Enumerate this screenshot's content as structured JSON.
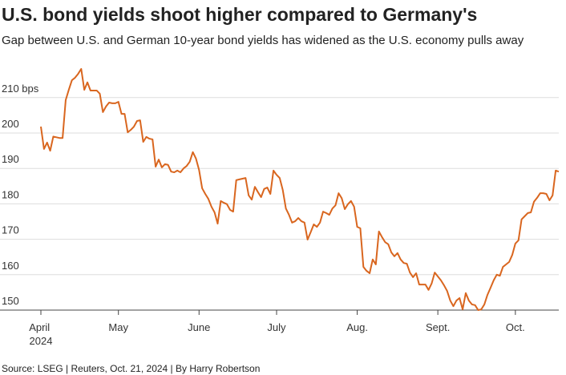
{
  "chart_data": {
    "type": "line",
    "title": "U.S. bond yields shoot higher compared to Germany's",
    "subtitle": "Gap between U.S. and German 10-year bond yields has widened as the U.S. economy pulls away",
    "source": "Source: LSEG | Reuters, Oct. 21, 2024 | By Harry Robertson",
    "categories": [
      "April 2024",
      null,
      null,
      null,
      null,
      null,
      null,
      null,
      null,
      null,
      null,
      null,
      null,
      null,
      null,
      null,
      null,
      null,
      null,
      null,
      null,
      null,
      null,
      null,
      null,
      "May",
      null,
      null,
      null,
      null,
      null,
      null,
      null,
      null,
      null,
      null,
      null,
      null,
      null,
      null,
      null,
      null,
      null,
      null,
      null,
      null,
      null,
      null,
      null,
      null,
      null,
      "June",
      null,
      null,
      null,
      null,
      null,
      null,
      null,
      null,
      null,
      null,
      null,
      null,
      null,
      null,
      null,
      null,
      null,
      null,
      null,
      null,
      null,
      null,
      null,
      null,
      "July",
      null,
      null,
      null,
      null,
      null,
      null,
      null,
      null,
      null,
      null,
      null,
      null,
      null,
      null,
      null,
      null,
      null,
      null,
      null,
      null,
      null,
      null,
      null,
      null,
      null,
      "Aug.",
      null,
      null,
      null,
      null,
      null,
      null,
      null,
      null,
      null,
      null,
      null,
      null,
      null,
      null,
      null,
      null,
      null,
      null,
      null,
      null,
      null,
      null,
      null,
      null,
      null,
      "Sept.",
      null,
      null,
      null,
      null,
      null,
      null,
      null,
      null,
      null,
      null,
      null,
      null,
      null,
      null,
      null,
      null,
      null,
      null,
      null,
      null,
      null,
      null,
      null,
      null,
      "Oct.",
      null,
      null,
      null,
      null,
      null,
      null,
      null,
      null,
      null,
      null,
      null,
      null,
      null,
      null
    ],
    "values": [
      201.8,
      195.5,
      197.3,
      195,
      199,
      198.8,
      198.6,
      198.6,
      209.3,
      212.2,
      214.9,
      215.6,
      216.7,
      218.1,
      212.2,
      214.3,
      212,
      212,
      212,
      211.1,
      205.9,
      207.5,
      208.6,
      208.4,
      208.4,
      208.8,
      205.4,
      205.4,
      200.2,
      200.9,
      201.8,
      203.4,
      203.6,
      197.5,
      198.9,
      198.4,
      198.2,
      190.5,
      192.5,
      190.3,
      191.2,
      191,
      189.1,
      188.9,
      189.4,
      188.9,
      190,
      190.7,
      191.9,
      194.6,
      192.8,
      189.6,
      184.4,
      182.8,
      181.4,
      179.2,
      177.6,
      174.4,
      180.8,
      180.3,
      179.9,
      178.3,
      177.8,
      186.7,
      186.9,
      187.1,
      187.3,
      182.4,
      181.2,
      184.8,
      183.3,
      181.9,
      184.2,
      184.6,
      182.8,
      189.4,
      188.2,
      187.3,
      183.9,
      178.7,
      176.9,
      174.7,
      175.1,
      176,
      175.1,
      174.7,
      169.9,
      172,
      174.2,
      173.5,
      174.7,
      177.8,
      177.4,
      176.9,
      178.7,
      179.6,
      183,
      181.6,
      178.5,
      179.9,
      180.8,
      179.2,
      173.5,
      173.1,
      162.2,
      161.1,
      160.4,
      164.3,
      162.9,
      172.2,
      170.6,
      169.2,
      168.6,
      166.3,
      165.2,
      166.1,
      164.3,
      163.3,
      163.1,
      160.6,
      159.3,
      160.4,
      157.2,
      157.2,
      157.2,
      155.7,
      157.5,
      160.6,
      159.5,
      158.4,
      157,
      155.4,
      152.7,
      151.1,
      152.7,
      153.4,
      150.2,
      154.8,
      152.7,
      151.6,
      151.4,
      150,
      150.2,
      151.6,
      154.3,
      156.3,
      158.4,
      160,
      159.7,
      162.2,
      162.9,
      163.6,
      165.6,
      168.8,
      169.7,
      175.6,
      176.5,
      177.4,
      177.6,
      180.6,
      181.7,
      183,
      183,
      182.8,
      181,
      182.4,
      189.4,
      189.1
    ],
    "color": "#d9661f",
    "ylim": [
      150,
      220
    ],
    "yticks": [
      150,
      160,
      170,
      180,
      190,
      200,
      {
        "value": 210,
        "label": "210 bps"
      }
    ],
    "grid": true
  }
}
